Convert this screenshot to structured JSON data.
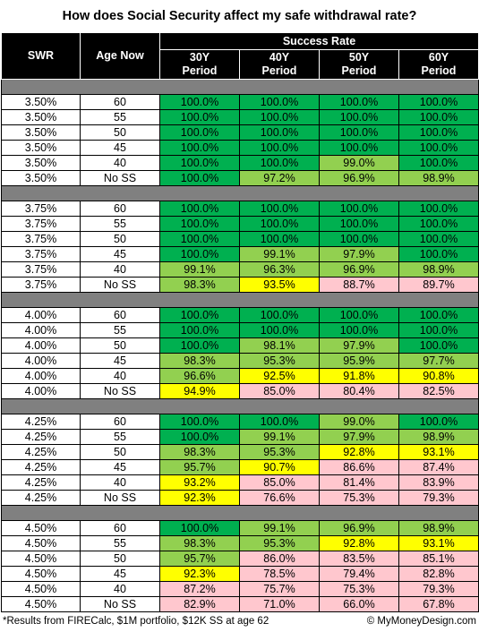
{
  "title": "How does Social Security affect my safe withdrawal rate?",
  "headers": {
    "swr": "SWR",
    "age_now": "Age Now",
    "success_rate": "Success Rate",
    "periods": [
      [
        "30Y",
        "Period"
      ],
      [
        "40Y",
        "Period"
      ],
      [
        "50Y",
        "Period"
      ],
      [
        "60Y",
        "Period"
      ]
    ]
  },
  "colors": {
    "g": "#00b050",
    "l": "#92d050",
    "y": "#ffff00",
    "p": "#ffc7ce",
    "separator": "#808080"
  },
  "groups": [
    {
      "rows": [
        {
          "swr": "3.50%",
          "age": "60",
          "values": [
            "100.0%",
            "100.0%",
            "100.0%",
            "100.0%"
          ],
          "colors": [
            "g",
            "g",
            "g",
            "g"
          ]
        },
        {
          "swr": "3.50%",
          "age": "55",
          "values": [
            "100.0%",
            "100.0%",
            "100.0%",
            "100.0%"
          ],
          "colors": [
            "g",
            "g",
            "g",
            "g"
          ]
        },
        {
          "swr": "3.50%",
          "age": "50",
          "values": [
            "100.0%",
            "100.0%",
            "100.0%",
            "100.0%"
          ],
          "colors": [
            "g",
            "g",
            "g",
            "g"
          ]
        },
        {
          "swr": "3.50%",
          "age": "45",
          "values": [
            "100.0%",
            "100.0%",
            "100.0%",
            "100.0%"
          ],
          "colors": [
            "g",
            "g",
            "g",
            "g"
          ]
        },
        {
          "swr": "3.50%",
          "age": "40",
          "values": [
            "100.0%",
            "100.0%",
            "99.0%",
            "100.0%"
          ],
          "colors": [
            "g",
            "g",
            "l",
            "g"
          ]
        },
        {
          "swr": "3.50%",
          "age": "No SS",
          "values": [
            "100.0%",
            "97.2%",
            "96.9%",
            "98.9%"
          ],
          "colors": [
            "g",
            "l",
            "l",
            "l"
          ]
        }
      ]
    },
    {
      "rows": [
        {
          "swr": "3.75%",
          "age": "60",
          "values": [
            "100.0%",
            "100.0%",
            "100.0%",
            "100.0%"
          ],
          "colors": [
            "g",
            "g",
            "g",
            "g"
          ]
        },
        {
          "swr": "3.75%",
          "age": "55",
          "values": [
            "100.0%",
            "100.0%",
            "100.0%",
            "100.0%"
          ],
          "colors": [
            "g",
            "g",
            "g",
            "g"
          ]
        },
        {
          "swr": "3.75%",
          "age": "50",
          "values": [
            "100.0%",
            "100.0%",
            "100.0%",
            "100.0%"
          ],
          "colors": [
            "g",
            "g",
            "g",
            "g"
          ]
        },
        {
          "swr": "3.75%",
          "age": "45",
          "values": [
            "100.0%",
            "99.1%",
            "97.9%",
            "100.0%"
          ],
          "colors": [
            "g",
            "l",
            "l",
            "g"
          ]
        },
        {
          "swr": "3.75%",
          "age": "40",
          "values": [
            "99.1%",
            "96.3%",
            "96.9%",
            "98.9%"
          ],
          "colors": [
            "l",
            "l",
            "l",
            "l"
          ]
        },
        {
          "swr": "3.75%",
          "age": "No SS",
          "values": [
            "98.3%",
            "93.5%",
            "88.7%",
            "89.7%"
          ],
          "colors": [
            "l",
            "y",
            "p",
            "p"
          ]
        }
      ]
    },
    {
      "rows": [
        {
          "swr": "4.00%",
          "age": "60",
          "values": [
            "100.0%",
            "100.0%",
            "100.0%",
            "100.0%"
          ],
          "colors": [
            "g",
            "g",
            "g",
            "g"
          ]
        },
        {
          "swr": "4.00%",
          "age": "55",
          "values": [
            "100.0%",
            "100.0%",
            "100.0%",
            "100.0%"
          ],
          "colors": [
            "g",
            "g",
            "g",
            "g"
          ]
        },
        {
          "swr": "4.00%",
          "age": "50",
          "values": [
            "100.0%",
            "98.1%",
            "97.9%",
            "100.0%"
          ],
          "colors": [
            "g",
            "l",
            "l",
            "g"
          ]
        },
        {
          "swr": "4.00%",
          "age": "45",
          "values": [
            "98.3%",
            "95.3%",
            "95.9%",
            "97.7%"
          ],
          "colors": [
            "l",
            "l",
            "l",
            "l"
          ]
        },
        {
          "swr": "4.00%",
          "age": "40",
          "values": [
            "96.6%",
            "92.5%",
            "91.8%",
            "90.8%"
          ],
          "colors": [
            "l",
            "y",
            "y",
            "y"
          ]
        },
        {
          "swr": "4.00%",
          "age": "No SS",
          "values": [
            "94.9%",
            "85.0%",
            "80.4%",
            "82.5%"
          ],
          "colors": [
            "y",
            "p",
            "p",
            "p"
          ]
        }
      ]
    },
    {
      "rows": [
        {
          "swr": "4.25%",
          "age": "60",
          "values": [
            "100.0%",
            "100.0%",
            "99.0%",
            "100.0%"
          ],
          "colors": [
            "g",
            "g",
            "l",
            "g"
          ]
        },
        {
          "swr": "4.25%",
          "age": "55",
          "values": [
            "100.0%",
            "99.1%",
            "97.9%",
            "98.9%"
          ],
          "colors": [
            "g",
            "l",
            "l",
            "l"
          ]
        },
        {
          "swr": "4.25%",
          "age": "50",
          "values": [
            "98.3%",
            "95.3%",
            "92.8%",
            "93.1%"
          ],
          "colors": [
            "l",
            "l",
            "y",
            "y"
          ]
        },
        {
          "swr": "4.25%",
          "age": "45",
          "values": [
            "95.7%",
            "90.7%",
            "86.6%",
            "87.4%"
          ],
          "colors": [
            "l",
            "y",
            "p",
            "p"
          ]
        },
        {
          "swr": "4.25%",
          "age": "40",
          "values": [
            "93.2%",
            "85.0%",
            "81.4%",
            "83.9%"
          ],
          "colors": [
            "y",
            "p",
            "p",
            "p"
          ]
        },
        {
          "swr": "4.25%",
          "age": "No SS",
          "values": [
            "92.3%",
            "76.6%",
            "75.3%",
            "79.3%"
          ],
          "colors": [
            "y",
            "p",
            "p",
            "p"
          ]
        }
      ]
    },
    {
      "rows": [
        {
          "swr": "4.50%",
          "age": "60",
          "values": [
            "100.0%",
            "99.1%",
            "96.9%",
            "98.9%"
          ],
          "colors": [
            "g",
            "l",
            "l",
            "l"
          ]
        },
        {
          "swr": "4.50%",
          "age": "55",
          "values": [
            "98.3%",
            "95.3%",
            "92.8%",
            "93.1%"
          ],
          "colors": [
            "l",
            "l",
            "y",
            "y"
          ]
        },
        {
          "swr": "4.50%",
          "age": "50",
          "values": [
            "95.7%",
            "86.0%",
            "83.5%",
            "85.1%"
          ],
          "colors": [
            "l",
            "p",
            "p",
            "p"
          ]
        },
        {
          "swr": "4.50%",
          "age": "45",
          "values": [
            "92.3%",
            "78.5%",
            "79.4%",
            "82.8%"
          ],
          "colors": [
            "y",
            "p",
            "p",
            "p"
          ]
        },
        {
          "swr": "4.50%",
          "age": "40",
          "values": [
            "87.2%",
            "75.7%",
            "75.3%",
            "79.3%"
          ],
          "colors": [
            "p",
            "p",
            "p",
            "p"
          ]
        },
        {
          "swr": "4.50%",
          "age": "No SS",
          "values": [
            "82.9%",
            "71.0%",
            "66.0%",
            "67.8%"
          ],
          "colors": [
            "p",
            "p",
            "p",
            "p"
          ]
        }
      ]
    }
  ],
  "footer": {
    "note": "*Results from FIRECalc, $1M portfolio, $12K SS at age 62",
    "credit": "© MyMoneyDesign.com"
  }
}
